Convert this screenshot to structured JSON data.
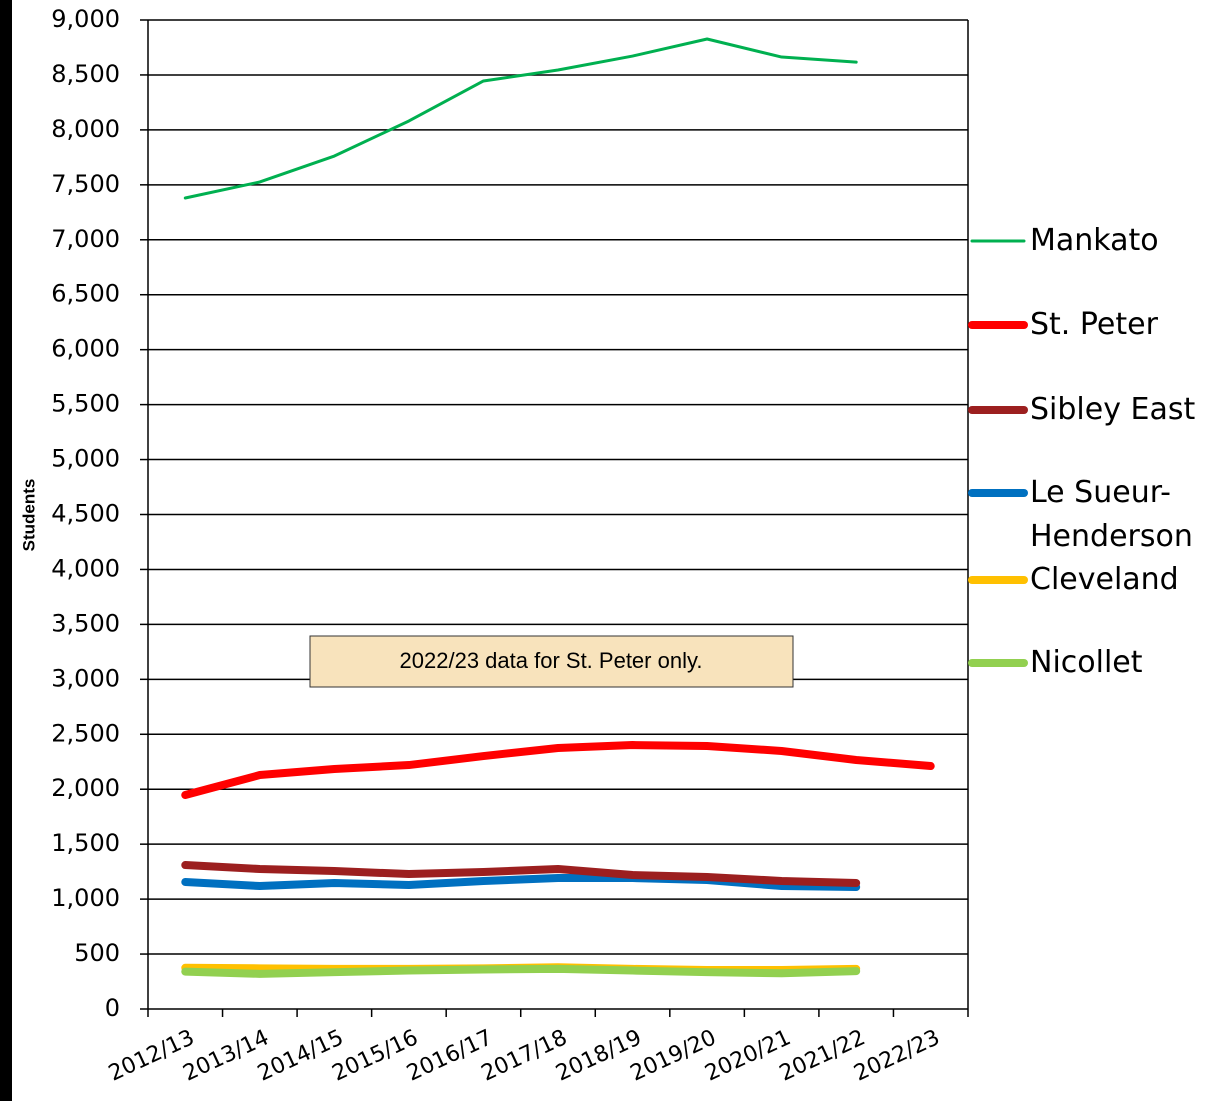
{
  "chart_data": {
    "type": "line",
    "y_label": "Students",
    "annotation": "2022/23 data for St. Peter only.",
    "categories": [
      "2012/13",
      "2013/14",
      "2014/15",
      "2015/16",
      "2016/17",
      "2017/18",
      "2018/19",
      "2019/20",
      "2020/21",
      "2021/22",
      "2022/23"
    ],
    "series": [
      {
        "name": "Mankato",
        "color": "#00b050",
        "values": [
          7380,
          7526,
          7762,
          8081,
          8445,
          8545,
          8672,
          8827,
          8663,
          8617,
          null
        ]
      },
      {
        "name": "St. Peter",
        "color": "#ff0000",
        "values": [
          1947,
          2129,
          2184,
          2220,
          2302,
          2375,
          2402,
          2393,
          2348,
          2266,
          2211
        ]
      },
      {
        "name": "Sibley East",
        "color": "#9c1f1f",
        "values": [
          1310,
          1274,
          1256,
          1228,
          1247,
          1274,
          1219,
          1201,
          1165,
          1147,
          null
        ]
      },
      {
        "name": "Le Sueur-Henderson",
        "color": "#0070c0",
        "values": [
          1156,
          1119,
          1147,
          1128,
          1165,
          1192,
          1192,
          1174,
          1119,
          1110,
          null
        ]
      },
      {
        "name": "Cleveland",
        "color": "#ffc000",
        "values": [
          375,
          370,
          365,
          365,
          370,
          380,
          365,
          355,
          355,
          365,
          null
        ]
      },
      {
        "name": "Nicollet",
        "color": "#92d050",
        "values": [
          340,
          320,
          335,
          350,
          360,
          365,
          350,
          335,
          325,
          345,
          null
        ]
      }
    ],
    "ylim": [
      0,
      9000
    ],
    "yticks": [
      0,
      500,
      {
        "value": 1000,
        "label": "1,000"
      },
      {
        "value": 1500,
        "label": "1,500"
      },
      {
        "value": 2000,
        "label": "2,000"
      },
      {
        "value": 2500,
        "label": "2,500"
      },
      {
        "value": 3000,
        "label": "3,000"
      },
      {
        "value": 3500,
        "label": "3,500"
      },
      {
        "value": 4000,
        "label": "4,000"
      },
      {
        "value": 4500,
        "label": "4,500"
      },
      {
        "value": 5000,
        "label": "5,000"
      },
      {
        "value": 5500,
        "label": "5,500"
      },
      {
        "value": 6000,
        "label": "6,000"
      },
      {
        "value": 6500,
        "label": "6,500"
      },
      {
        "value": 7000,
        "label": "7,000"
      },
      {
        "value": 7500,
        "label": "7,500"
      },
      {
        "value": 8000,
        "label": "8,000"
      },
      {
        "value": 8500,
        "label": "8,500"
      },
      {
        "value": 9000,
        "label": "9,000"
      }
    ],
    "grid": true,
    "legend": "right"
  }
}
